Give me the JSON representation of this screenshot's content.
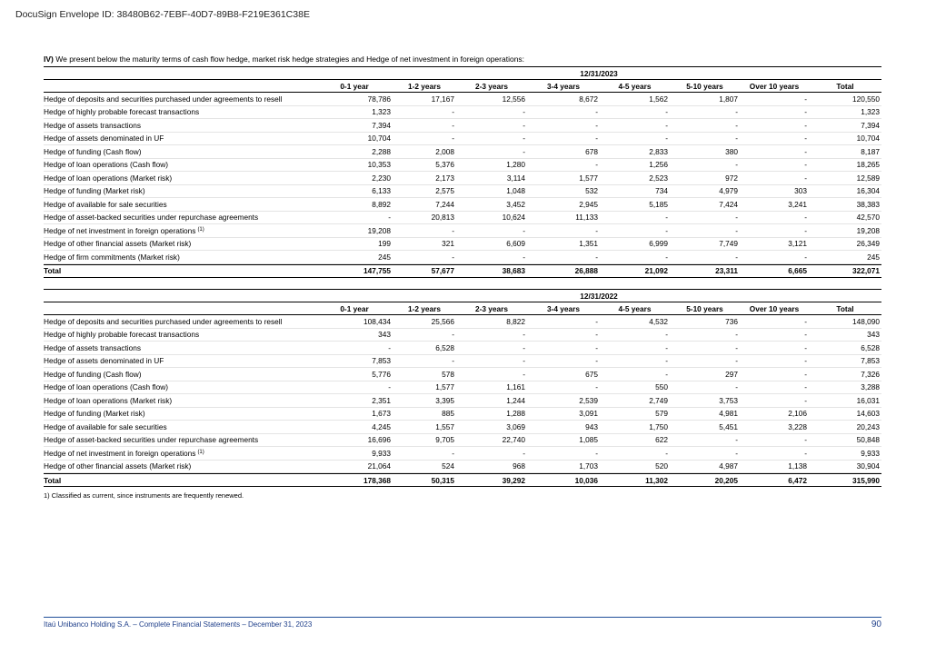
{
  "envelope": "DocuSign Envelope ID: 38480B62-7EBF-40D7-89B8-F219E361C38E",
  "heading": {
    "label": "IV)",
    "text": "We present below the maturity terms of cash flow hedge, market risk hedge strategies and Hedge of net investment in foreign operations:"
  },
  "tables": [
    {
      "date": "12/31/2023",
      "columns": [
        "0-1 year",
        "1-2 years",
        "2-3 years",
        "3-4 years",
        "4-5 years",
        "5-10 years",
        "Over 10 years",
        "Total"
      ],
      "rows": [
        {
          "label": "Hedge of deposits and securities purchased under agreements to resell",
          "cells": [
            "78,786",
            "17,167",
            "12,556",
            "8,672",
            "1,562",
            "1,807",
            "-",
            "120,550"
          ]
        },
        {
          "label": "Hedge of highly probable forecast transactions",
          "cells": [
            "1,323",
            "-",
            "-",
            "-",
            "-",
            "-",
            "-",
            "1,323"
          ]
        },
        {
          "label": "Hedge of assets transactions",
          "cells": [
            "7,394",
            "-",
            "-",
            "-",
            "-",
            "-",
            "-",
            "7,394"
          ]
        },
        {
          "label": "Hedge of assets denominated in UF",
          "cells": [
            "10,704",
            "-",
            "-",
            "-",
            "-",
            "-",
            "-",
            "10,704"
          ]
        },
        {
          "label": "Hedge of funding (Cash flow)",
          "cells": [
            "2,288",
            "2,008",
            "-",
            "678",
            "2,833",
            "380",
            "-",
            "8,187"
          ]
        },
        {
          "label": "Hedge of loan operations (Cash flow)",
          "cells": [
            "10,353",
            "5,376",
            "1,280",
            "-",
            "1,256",
            "-",
            "-",
            "18,265"
          ]
        },
        {
          "label": "Hedge of loan operations (Market risk)",
          "cells": [
            "2,230",
            "2,173",
            "3,114",
            "1,577",
            "2,523",
            "972",
            "-",
            "12,589"
          ]
        },
        {
          "label": "Hedge of funding (Market risk)",
          "cells": [
            "6,133",
            "2,575",
            "1,048",
            "532",
            "734",
            "4,979",
            "303",
            "16,304"
          ]
        },
        {
          "label": "Hedge of available for sale securities",
          "cells": [
            "8,892",
            "7,244",
            "3,452",
            "2,945",
            "5,185",
            "7,424",
            "3,241",
            "38,383"
          ]
        },
        {
          "label": "Hedge of asset-backed securities under repurchase agreements",
          "cells": [
            "-",
            "20,813",
            "10,624",
            "11,133",
            "-",
            "-",
            "-",
            "42,570"
          ]
        },
        {
          "label": "Hedge of net investment in foreign operations",
          "note": "(1)",
          "cells": [
            "19,208",
            "-",
            "-",
            "-",
            "-",
            "-",
            "-",
            "19,208"
          ]
        },
        {
          "label": "Hedge of other financial assets (Market risk)",
          "cells": [
            "199",
            "321",
            "6,609",
            "1,351",
            "6,999",
            "7,749",
            "3,121",
            "26,349"
          ]
        },
        {
          "label": "Hedge of firm commitments (Market risk)",
          "cells": [
            "245",
            "-",
            "-",
            "-",
            "-",
            "-",
            "-",
            "245"
          ]
        }
      ],
      "total": {
        "label": "Total",
        "cells": [
          "147,755",
          "57,677",
          "38,683",
          "26,888",
          "21,092",
          "23,311",
          "6,665",
          "322,071"
        ]
      }
    },
    {
      "date": "12/31/2022",
      "columns": [
        "0-1 year",
        "1-2 years",
        "2-3 years",
        "3-4 years",
        "4-5 years",
        "5-10 years",
        "Over 10 years",
        "Total"
      ],
      "rows": [
        {
          "label": "Hedge of deposits and securities purchased under agreements to resell",
          "cells": [
            "108,434",
            "25,566",
            "8,822",
            "-",
            "4,532",
            "736",
            "-",
            "148,090"
          ]
        },
        {
          "label": "Hedge of highly probable forecast transactions",
          "cells": [
            "343",
            "-",
            "-",
            "-",
            "-",
            "-",
            "-",
            "343"
          ]
        },
        {
          "label": "Hedge of assets transactions",
          "cells": [
            "-",
            "6,528",
            "-",
            "-",
            "-",
            "-",
            "-",
            "6,528"
          ]
        },
        {
          "label": "Hedge of assets denominated in UF",
          "cells": [
            "7,853",
            "-",
            "-",
            "-",
            "-",
            "-",
            "-",
            "7,853"
          ]
        },
        {
          "label": "Hedge of funding (Cash flow)",
          "cells": [
            "5,776",
            "578",
            "-",
            "675",
            "-",
            "297",
            "-",
            "7,326"
          ]
        },
        {
          "label": "Hedge of loan operations (Cash flow)",
          "cells": [
            "-",
            "1,577",
            "1,161",
            "-",
            "550",
            "-",
            "-",
            "3,288"
          ]
        },
        {
          "label": "Hedge of loan operations (Market risk)",
          "cells": [
            "2,351",
            "3,395",
            "1,244",
            "2,539",
            "2,749",
            "3,753",
            "-",
            "16,031"
          ]
        },
        {
          "label": "Hedge of funding (Market risk)",
          "cells": [
            "1,673",
            "885",
            "1,288",
            "3,091",
            "579",
            "4,981",
            "2,106",
            "14,603"
          ]
        },
        {
          "label": "Hedge of available for sale securities",
          "cells": [
            "4,245",
            "1,557",
            "3,069",
            "943",
            "1,750",
            "5,451",
            "3,228",
            "20,243"
          ]
        },
        {
          "label": "Hedge of asset-backed securities under repurchase agreements",
          "cells": [
            "16,696",
            "9,705",
            "22,740",
            "1,085",
            "622",
            "-",
            "-",
            "50,848"
          ]
        },
        {
          "label": "Hedge of net investment in foreign operations",
          "note": "(1)",
          "cells": [
            "9,933",
            "-",
            "-",
            "-",
            "-",
            "-",
            "-",
            "9,933"
          ]
        },
        {
          "label": "Hedge of other financial assets (Market risk)",
          "cells": [
            "21,064",
            "524",
            "968",
            "1,703",
            "520",
            "4,987",
            "1,138",
            "30,904"
          ]
        }
      ],
      "total": {
        "label": "Total",
        "cells": [
          "178,368",
          "50,315",
          "39,292",
          "10,036",
          "11,302",
          "20,205",
          "6,472",
          "315,990"
        ]
      }
    }
  ],
  "footnote": "1) Classified as current, since instruments are frequently renewed.",
  "footer": {
    "text": "Itaú Unibanco Holding S.A. – Complete Financial Statements – December 31, 2023",
    "page": "90"
  }
}
